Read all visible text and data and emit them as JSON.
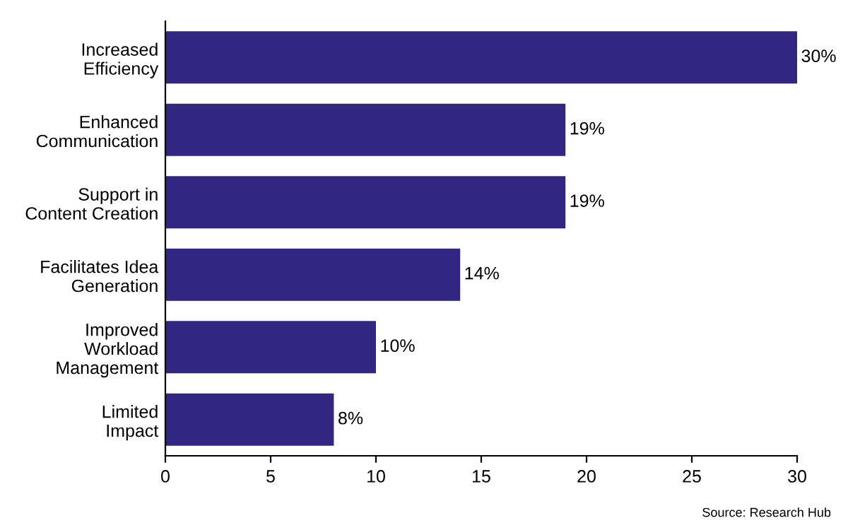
{
  "chart_data": {
    "type": "bar",
    "orientation": "horizontal",
    "categories": [
      "Increased\nEfficiency",
      "Enhanced\nCommunication",
      "Support in\nContent Creation",
      "Facilitates Idea\nGeneration",
      "Improved\nWorkload\nManagement",
      "Limited\nImpact"
    ],
    "values": [
      30,
      19,
      19,
      14,
      10,
      8
    ],
    "value_labels": [
      "30%",
      "19%",
      "19%",
      "14%",
      "10%",
      "8%"
    ],
    "color": "#312783",
    "xlim": [
      0,
      30
    ],
    "xticks": [
      0,
      5,
      10,
      15,
      20,
      25,
      30
    ],
    "grid": false,
    "legend": false,
    "annotations": [
      "Source: Research Hub"
    ]
  }
}
